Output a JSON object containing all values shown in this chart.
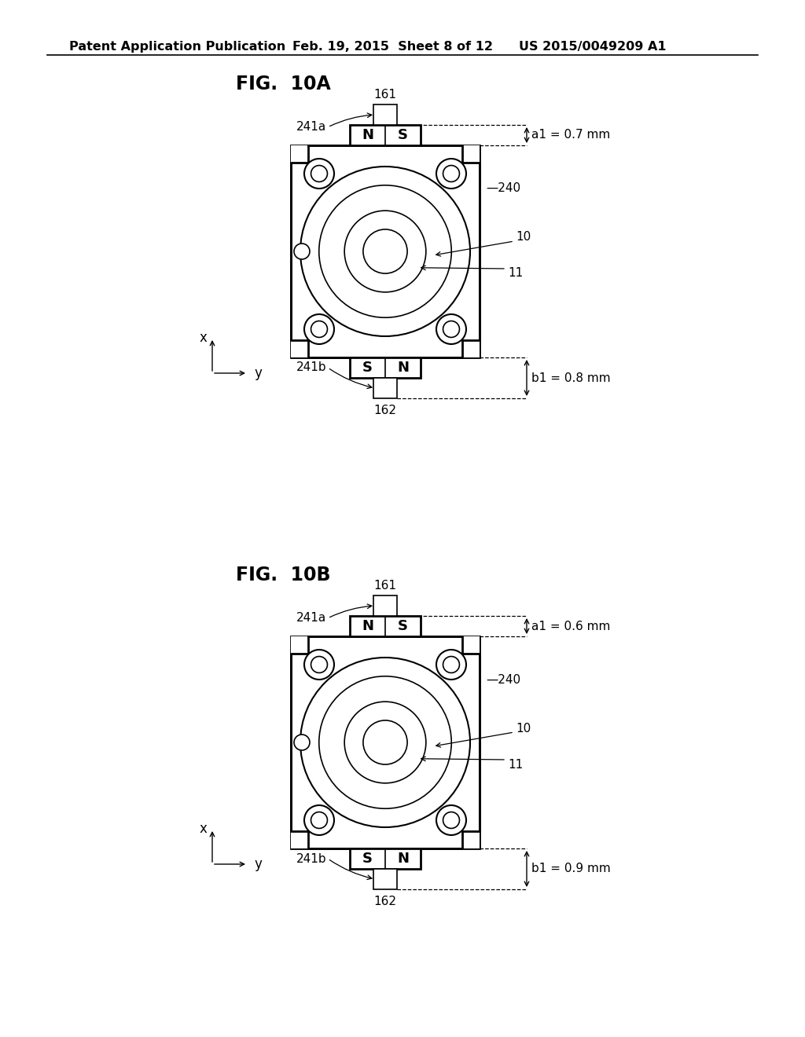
{
  "bg_color": "#ffffff",
  "header_text": "Patent Application Publication",
  "header_date": "Feb. 19, 2015  Sheet 8 of 12",
  "header_patent": "US 2015/0049209 A1",
  "fig_label_A": "FIG.  10A",
  "fig_label_B": "FIG.  10B",
  "fig_A": {
    "label_a1": "a1 = 0.7 mm",
    "label_b1": "b1 = 0.8 mm"
  },
  "fig_B": {
    "label_a1": "a1 = 0.6 mm",
    "label_b1": "b1 = 0.9 mm"
  }
}
